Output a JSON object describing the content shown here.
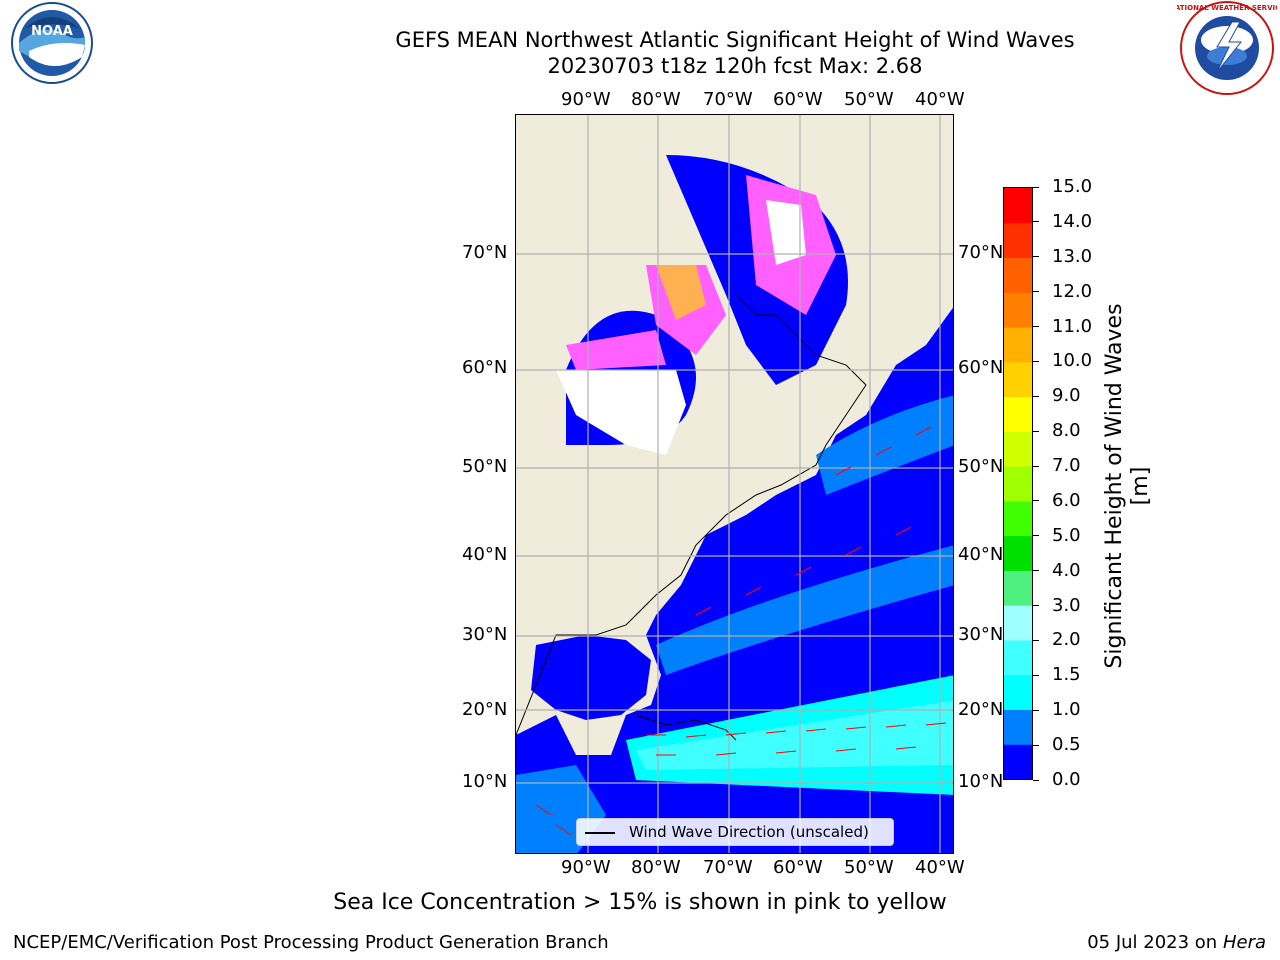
{
  "title_line1": "GEFS MEAN Northwest Atlantic Significant Height of Wind Waves",
  "title_line2": "20230703 t18z 120h fcst   Max: 2.68",
  "lon_labels": [
    "90°W",
    "80°W",
    "70°W",
    "60°W",
    "50°W",
    "40°W"
  ],
  "lat_labels": [
    "70°N",
    "60°N",
    "50°N",
    "40°N",
    "30°N",
    "20°N",
    "10°N"
  ],
  "colorbar": {
    "title": "Significant Height of Wind Waves [m]",
    "ticks": [
      "0.0",
      "0.5",
      "1.0",
      "1.5",
      "2.0",
      "3.0",
      "4.0",
      "5.0",
      "6.0",
      "7.0",
      "8.0",
      "9.0",
      "10.0",
      "11.0",
      "12.0",
      "13.0",
      "14.0",
      "15.0"
    ],
    "colors": [
      "#0000ff",
      "#0080ff",
      "#00ffff",
      "#40ffff",
      "#a0ffff",
      "#50f080",
      "#00e000",
      "#40ff00",
      "#a0ff00",
      "#d0ff00",
      "#ffff00",
      "#ffd000",
      "#ffb000",
      "#ff8000",
      "#ff6000",
      "#ff3000",
      "#ff0000"
    ]
  },
  "legend": {
    "label": "Wind Wave Direction (unscaled)"
  },
  "caption": "Sea Ice Concentration > 15% is shown in pink to yellow",
  "credit": "NCEP/EMC/Verification Post Processing Product Generation Branch",
  "date": "05 Jul 2023 on ",
  "date_host": "Hera",
  "logos": {
    "left": "NOAA",
    "right": "NATIONAL WEATHER SERVICE"
  },
  "colors": {
    "land": "#efecdc",
    "water_low": "#0000ff",
    "water_mid": "#0080ff",
    "water_high": "#00ffff",
    "ice_pink": "#ff60ff",
    "ice_orange": "#ffb050",
    "arrows": "#ff0000"
  }
}
